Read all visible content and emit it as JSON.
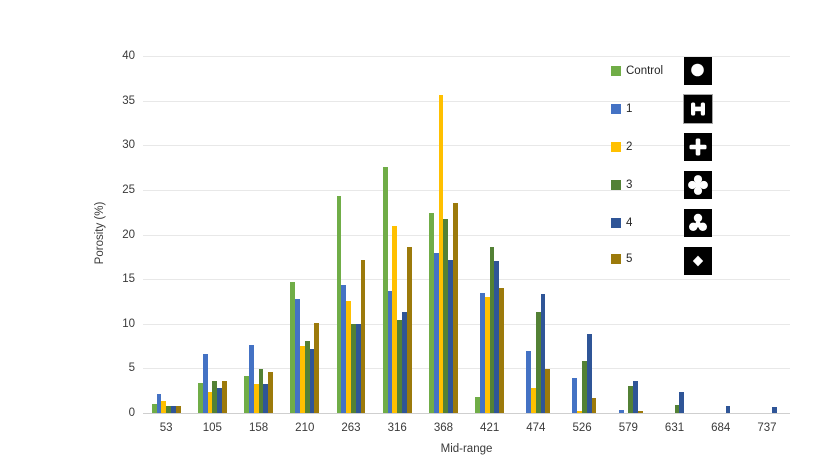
{
  "chart_data": {
    "type": "bar",
    "title": "",
    "xlabel": "Mid-range",
    "ylabel": "Porosity (%)",
    "ylim": [
      0,
      40
    ],
    "yticks": [
      0,
      5,
      10,
      15,
      20,
      25,
      30,
      35,
      40
    ],
    "grid": true,
    "legend_position": "top-right-inside",
    "categories": [
      "53",
      "105",
      "158",
      "210",
      "263",
      "316",
      "368",
      "421",
      "474",
      "526",
      "579",
      "631",
      "684",
      "737"
    ],
    "series": [
      {
        "name": "Control",
        "color": "#70AD47",
        "values": [
          1.0,
          3.4,
          4.2,
          14.7,
          24.3,
          27.6,
          22.4,
          1.8,
          0,
          0,
          0,
          0,
          0,
          0
        ]
      },
      {
        "name": "1",
        "color": "#4472C4",
        "values": [
          2.1,
          6.6,
          7.6,
          12.8,
          14.3,
          13.7,
          17.9,
          13.5,
          7.0,
          3.9,
          0.3,
          0,
          0,
          0
        ]
      },
      {
        "name": "2",
        "color": "#FFC000",
        "values": [
          1.4,
          2.3,
          3.3,
          7.5,
          12.5,
          21.0,
          35.6,
          13.0,
          2.8,
          0.2,
          0,
          0,
          0,
          0
        ]
      },
      {
        "name": "3",
        "color": "#538135",
        "values": [
          0.8,
          3.6,
          4.9,
          8.1,
          10.0,
          10.4,
          21.7,
          18.6,
          11.3,
          5.8,
          3.0,
          0.9,
          0,
          0
        ]
      },
      {
        "name": "4",
        "color": "#2F5597",
        "values": [
          0.8,
          2.8,
          3.3,
          7.2,
          10.0,
          11.3,
          17.2,
          17.0,
          13.3,
          8.9,
          3.6,
          2.3,
          0.8,
          0.7
        ]
      },
      {
        "name": "5",
        "color": "#9C7A0B",
        "values": [
          0.8,
          3.6,
          4.6,
          10.1,
          17.2,
          18.6,
          23.5,
          14.0,
          4.9,
          1.7,
          0.2,
          0,
          0,
          0
        ]
      }
    ]
  },
  "legend": {
    "items": [
      {
        "label": "Control"
      },
      {
        "label": "1"
      },
      {
        "label": "2"
      },
      {
        "label": "3"
      },
      {
        "label": "4"
      },
      {
        "label": "5"
      }
    ]
  },
  "shape_icons": [
    {
      "name": "filled-circle"
    },
    {
      "name": "dumbbell"
    },
    {
      "name": "plus-cross"
    },
    {
      "name": "four-lobe-clover"
    },
    {
      "name": "three-lobe-trefoil"
    },
    {
      "name": "diamond"
    }
  ]
}
